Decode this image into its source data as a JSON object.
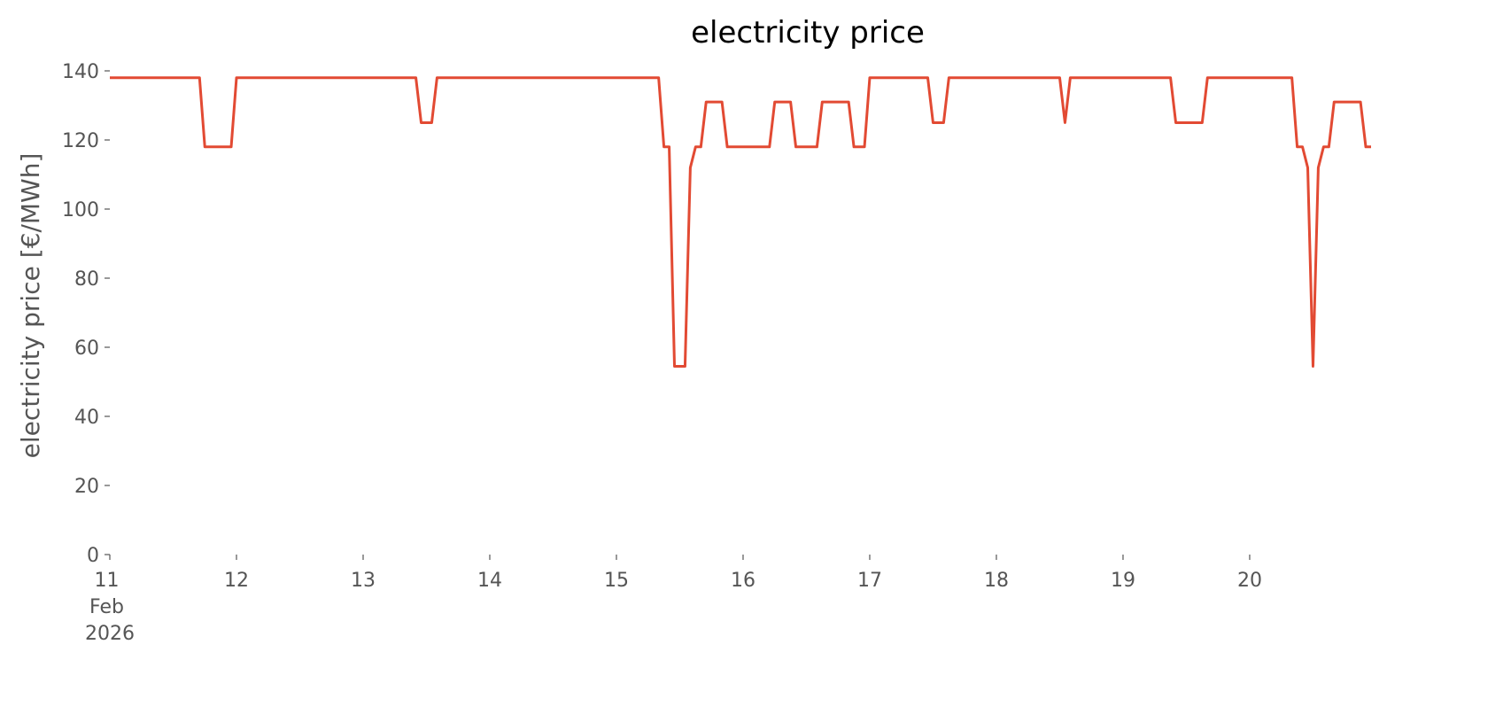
{
  "chart_data": {
    "type": "line",
    "title": "electricity price",
    "y_label": "electricity price [€/MWh]",
    "x": [
      "2026-02-11T00:00",
      "2026-02-11T17:00",
      "2026-02-11T18:00",
      "2026-02-11T23:00",
      "2026-02-12T00:00",
      "2026-02-13T10:00",
      "2026-02-13T11:00",
      "2026-02-13T13:00",
      "2026-02-13T14:00",
      "2026-02-15T08:00",
      "2026-02-15T09:00",
      "2026-02-15T10:00",
      "2026-02-15T11:00",
      "2026-02-15T13:00",
      "2026-02-15T14:00",
      "2026-02-15T15:00",
      "2026-02-15T16:00",
      "2026-02-15T17:00",
      "2026-02-15T20:00",
      "2026-02-15T21:00",
      "2026-02-16T05:00",
      "2026-02-16T06:00",
      "2026-02-16T09:00",
      "2026-02-16T10:00",
      "2026-02-16T14:00",
      "2026-02-16T15:00",
      "2026-02-16T20:00",
      "2026-02-16T21:00",
      "2026-02-16T23:00",
      "2026-02-17T00:00",
      "2026-02-17T11:00",
      "2026-02-17T12:00",
      "2026-02-17T14:00",
      "2026-02-17T15:00",
      "2026-02-18T12:00",
      "2026-02-18T13:00",
      "2026-02-18T14:00",
      "2026-02-19T09:00",
      "2026-02-19T10:00",
      "2026-02-19T15:00",
      "2026-02-19T16:00",
      "2026-02-20T08:00",
      "2026-02-20T09:00",
      "2026-02-20T10:00",
      "2026-02-20T11:00",
      "2026-02-20T12:00",
      "2026-02-20T13:00",
      "2026-02-20T14:00",
      "2026-02-20T15:00",
      "2026-02-20T16:00",
      "2026-02-20T21:00",
      "2026-02-20T22:00",
      "2026-02-20T23:00"
    ],
    "series": [
      {
        "name": "electricity price",
        "color": "#e24a33",
        "values": [
          138,
          138,
          118,
          118,
          138,
          138,
          125,
          125,
          138,
          138,
          118,
          118,
          54.5,
          54.5,
          112,
          118,
          118,
          131,
          131,
          118,
          118,
          131,
          131,
          118,
          118,
          131,
          131,
          118,
          118,
          138,
          138,
          125,
          125,
          138,
          138,
          125,
          138,
          138,
          125,
          125,
          138,
          138,
          118,
          118,
          112,
          54.5,
          112,
          118,
          118,
          131,
          131,
          118,
          118
        ]
      }
    ],
    "xlim": [
      "2026-02-11T00:00",
      "2026-02-20T23:00"
    ],
    "xticks": [
      {
        "value": "2026-02-11",
        "label": "11 Feb 2026"
      },
      {
        "value": "2026-02-12",
        "label": "12"
      },
      {
        "value": "2026-02-13",
        "label": "13"
      },
      {
        "value": "2026-02-14",
        "label": "14"
      },
      {
        "value": "2026-02-15",
        "label": "15"
      },
      {
        "value": "2026-02-16",
        "label": "16"
      },
      {
        "value": "2026-02-17",
        "label": "17"
      },
      {
        "value": "2026-02-18",
        "label": "18"
      },
      {
        "value": "2026-02-19",
        "label": "19"
      },
      {
        "value": "2026-02-20",
        "label": "20"
      }
    ],
    "ylim": [
      0,
      140
    ],
    "yticks": [
      0,
      20,
      40,
      60,
      80,
      100,
      120,
      140
    ],
    "grid": false
  }
}
